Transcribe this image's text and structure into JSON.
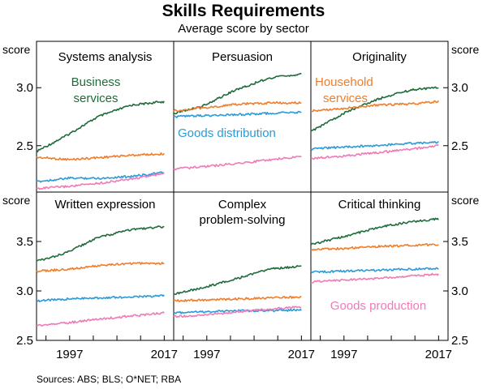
{
  "chart_data": {
    "type": "line",
    "title": "Skills Requirements",
    "subtitle": "Average score by sector",
    "source": "Sources: ABS; BLS; O*NET; RBA",
    "y_unit_label": "score",
    "x_ticks": [
      "1997",
      "2017"
    ],
    "x_tick_values": [
      1997,
      2017
    ],
    "x_range": [
      1990,
      2019
    ],
    "row_ylims": [
      [
        2.1,
        3.4
      ],
      [
        2.5,
        4.0
      ]
    ],
    "row_yticks": [
      [
        "2.5",
        "3.0"
      ],
      [
        "2.5",
        "3.0",
        "3.5"
      ]
    ],
    "series_colors": {
      "Business services": "#1f6b3a",
      "Household services": "#f07d2a",
      "Goods distribution": "#2a9bd8",
      "Goods production": "#f07ab8"
    },
    "annotations": [
      {
        "text": "Business services",
        "panel": 0,
        "color": "#1f6b3a"
      },
      {
        "text": "Goods distribution",
        "panel": 1,
        "color": "#2a9bd8"
      },
      {
        "text": "Household services",
        "panel": 2,
        "color": "#f07d2a"
      },
      {
        "text": "Goods production",
        "panel": 5,
        "color": "#f07ab8"
      }
    ],
    "panels": [
      {
        "title": "Systems analysis",
        "row": 0,
        "col": 0,
        "series": [
          {
            "name": "Business services",
            "x": [
              1990,
              1996,
              2003,
              2010,
              2017
            ],
            "y": [
              2.45,
              2.58,
              2.75,
              2.85,
              2.88
            ]
          },
          {
            "name": "Household services",
            "x": [
              1990,
              1997,
              2004,
              2011,
              2017
            ],
            "y": [
              2.4,
              2.38,
              2.4,
              2.42,
              2.43
            ]
          },
          {
            "name": "Goods distribution",
            "x": [
              1990,
              1997,
              2004,
              2011,
              2017
            ],
            "y": [
              2.19,
              2.22,
              2.22,
              2.24,
              2.27
            ]
          },
          {
            "name": "Goods production",
            "x": [
              1990,
              1997,
              2004,
              2011,
              2017
            ],
            "y": [
              2.13,
              2.15,
              2.18,
              2.22,
              2.26
            ]
          }
        ]
      },
      {
        "title": "Persuasion",
        "row": 0,
        "col": 1,
        "series": [
          {
            "name": "Business services",
            "x": [
              1990,
              1996,
              2003,
              2010,
              2017
            ],
            "y": [
              2.78,
              2.84,
              2.98,
              3.08,
              3.12
            ]
          },
          {
            "name": "Household services",
            "x": [
              1990,
              1997,
              2004,
              2011,
              2017
            ],
            "y": [
              2.8,
              2.83,
              2.86,
              2.87,
              2.87
            ]
          },
          {
            "name": "Goods distribution",
            "x": [
              1990,
              1997,
              2004,
              2011,
              2017
            ],
            "y": [
              2.75,
              2.76,
              2.77,
              2.78,
              2.79
            ]
          },
          {
            "name": "Goods production",
            "x": [
              1990,
              1997,
              2004,
              2011,
              2017
            ],
            "y": [
              2.3,
              2.32,
              2.35,
              2.38,
              2.41
            ]
          }
        ]
      },
      {
        "title": "Originality",
        "row": 0,
        "col": 2,
        "series": [
          {
            "name": "Business services",
            "x": [
              1990,
              1997,
              2004,
              2011,
              2017
            ],
            "y": [
              2.62,
              2.78,
              2.9,
              2.98,
              3.0
            ]
          },
          {
            "name": "Household services",
            "x": [
              1990,
              1997,
              2004,
              2011,
              2017
            ],
            "y": [
              2.8,
              2.82,
              2.85,
              2.86,
              2.88
            ]
          },
          {
            "name": "Goods distribution",
            "x": [
              1990,
              1997,
              2004,
              2011,
              2017
            ],
            "y": [
              2.47,
              2.49,
              2.5,
              2.52,
              2.53
            ]
          },
          {
            "name": "Goods production",
            "x": [
              1990,
              1997,
              2004,
              2011,
              2017
            ],
            "y": [
              2.39,
              2.41,
              2.44,
              2.47,
              2.5
            ]
          }
        ]
      },
      {
        "title": "Written expression",
        "row": 1,
        "col": 0,
        "series": [
          {
            "name": "Business services",
            "x": [
              1990,
              1996,
              2003,
              2010,
              2017
            ],
            "y": [
              3.3,
              3.38,
              3.54,
              3.62,
              3.65
            ]
          },
          {
            "name": "Household services",
            "x": [
              1990,
              1997,
              2004,
              2011,
              2017
            ],
            "y": [
              3.2,
              3.22,
              3.26,
              3.28,
              3.28
            ]
          },
          {
            "name": "Goods distribution",
            "x": [
              1990,
              1997,
              2004,
              2011,
              2017
            ],
            "y": [
              2.9,
              2.92,
              2.93,
              2.94,
              2.95
            ]
          },
          {
            "name": "Goods production",
            "x": [
              1990,
              1997,
              2004,
              2011,
              2017
            ],
            "y": [
              2.65,
              2.68,
              2.72,
              2.75,
              2.78
            ]
          }
        ]
      },
      {
        "title": "Complex problem-solving",
        "row": 1,
        "col": 1,
        "series": [
          {
            "name": "Business services",
            "x": [
              1990,
              1996,
              2003,
              2010,
              2017
            ],
            "y": [
              2.97,
              3.03,
              3.12,
              3.22,
              3.25
            ]
          },
          {
            "name": "Household services",
            "x": [
              1990,
              1997,
              2004,
              2011,
              2017
            ],
            "y": [
              2.9,
              2.91,
              2.92,
              2.93,
              2.94
            ]
          },
          {
            "name": "Goods distribution",
            "x": [
              1990,
              1997,
              2004,
              2011,
              2017
            ],
            "y": [
              2.78,
              2.79,
              2.8,
              2.8,
              2.81
            ]
          },
          {
            "name": "Goods production",
            "x": [
              1990,
              1997,
              2004,
              2011,
              2017
            ],
            "y": [
              2.74,
              2.76,
              2.79,
              2.82,
              2.84
            ]
          }
        ]
      },
      {
        "title": "Critical thinking",
        "row": 1,
        "col": 2,
        "series": [
          {
            "name": "Business services",
            "x": [
              1990,
              1997,
              2004,
              2011,
              2017
            ],
            "y": [
              3.47,
              3.55,
              3.64,
              3.7,
              3.73
            ]
          },
          {
            "name": "Household services",
            "x": [
              1990,
              1997,
              2004,
              2011,
              2017
            ],
            "y": [
              3.42,
              3.43,
              3.45,
              3.46,
              3.47
            ]
          },
          {
            "name": "Goods distribution",
            "x": [
              1990,
              1997,
              2004,
              2011,
              2017
            ],
            "y": [
              3.19,
              3.2,
              3.21,
              3.22,
              3.23
            ]
          },
          {
            "name": "Goods production",
            "x": [
              1990,
              1997,
              2004,
              2011,
              2017
            ],
            "y": [
              3.09,
              3.11,
              3.13,
              3.15,
              3.17
            ]
          }
        ]
      }
    ]
  }
}
